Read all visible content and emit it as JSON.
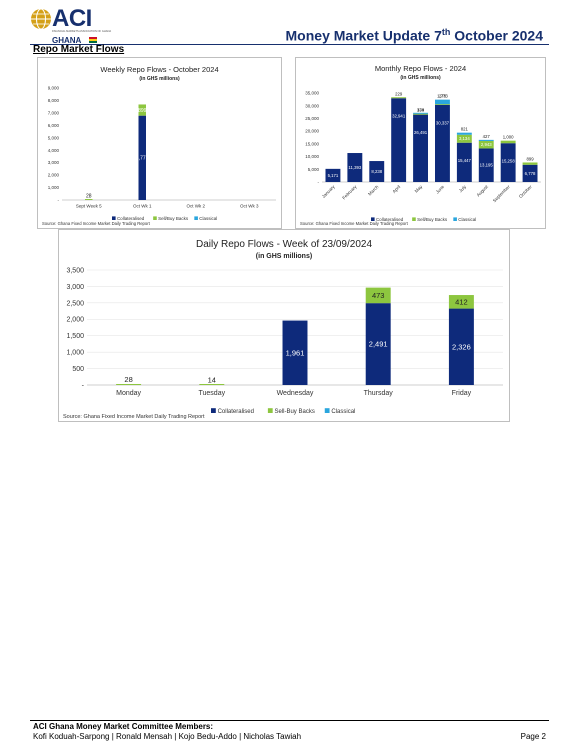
{
  "header": {
    "logo_text": "ACI",
    "logo_subtext": "FINANCIAL MARKETS ASSOCIATION OF GHANA",
    "logo_country": "GHANA",
    "title_main": "Money Market Update 7",
    "title_sup": "th",
    "title_end": " October 2024",
    "section": "Repo Market Flows"
  },
  "colors": {
    "collateralised": "#0e2a7b",
    "sell_buy_backs": "#8dc63f",
    "classical": "#2aa6de",
    "brand": "#17306e"
  },
  "chart_data": [
    {
      "type": "bar",
      "stacked": true,
      "title": "Weekly Repo Flows - October 2024",
      "subtitle": "(in GHS millions)",
      "categories": [
        "Sept Week 5",
        "Oct Wk 1",
        "Oct Wk 2",
        "Oct Wk 3"
      ],
      "series": [
        {
          "name": "Collateralised",
          "values": [
            0,
            6778,
            0,
            0
          ]
        },
        {
          "name": "Sell/Buy Backs",
          "values": [
            28,
            899,
            0,
            0
          ]
        },
        {
          "name": "Classical",
          "values": [
            0,
            0,
            0,
            0
          ]
        }
      ],
      "data_labels": [
        {
          "category": "Sept Week 5",
          "text": "28"
        },
        {
          "category": "Oct Wk 1",
          "text": "899"
        },
        {
          "category": "Oct Wk 1",
          "text": "6,778"
        }
      ],
      "ylim": [
        0,
        9000
      ],
      "yticks": [
        "-",
        "1,000",
        "2,000",
        "3,000",
        "4,000",
        "5,000",
        "6,000",
        "7,000",
        "8,000",
        "9,000"
      ],
      "legend": [
        "Collateralised",
        "Sell/Buy Backs",
        "Classical"
      ],
      "legend_position": "bottom",
      "source": "Source: Ghana Fixed Income Market Daily Trading Report"
    },
    {
      "type": "bar",
      "stacked": true,
      "title": "Monthly Repo Flows - 2024",
      "subtitle": "(in GHS millions)",
      "categories": [
        "January",
        "February",
        "March",
        "April",
        "May",
        "June",
        "July",
        "August",
        "September",
        "October"
      ],
      "series": [
        {
          "name": "Collateralised",
          "values": [
            5171,
            11393,
            8238,
            32941,
            26491,
            30337,
            15447,
            13195,
            15258,
            6778
          ]
        },
        {
          "name": "Sell/Buy Backs",
          "values": [
            0,
            0,
            0,
            229,
            330,
            278,
            3134,
            2943,
            1000,
            899
          ]
        },
        {
          "name": "Classical",
          "values": [
            0,
            0,
            0,
            0,
            174,
            1773,
            821,
            427,
            0,
            0
          ]
        }
      ],
      "data_labels": [
        {
          "category": "January",
          "text": "5,171"
        },
        {
          "category": "February",
          "text": "11,393"
        },
        {
          "category": "March",
          "text": "8,238"
        },
        {
          "category": "April",
          "text": "32,941"
        },
        {
          "category": "April",
          "text": "229"
        },
        {
          "category": "May",
          "text": "26,491"
        },
        {
          "category": "May",
          "text": "174"
        },
        {
          "category": "May",
          "text": "330"
        },
        {
          "category": "June",
          "text": "30,337"
        },
        {
          "category": "June",
          "text": "1,773"
        },
        {
          "category": "June",
          "text": "278"
        },
        {
          "category": "July",
          "text": "15,447"
        },
        {
          "category": "July",
          "text": "3,134"
        },
        {
          "category": "July",
          "text": "821"
        },
        {
          "category": "August",
          "text": "13,195"
        },
        {
          "category": "August",
          "text": "2,943"
        },
        {
          "category": "August",
          "text": "427"
        },
        {
          "category": "September",
          "text": "15,258"
        },
        {
          "category": "September",
          "text": "1,000"
        },
        {
          "category": "October",
          "text": "6,778"
        },
        {
          "category": "October",
          "text": "899"
        }
      ],
      "ylim": [
        0,
        35000
      ],
      "yticks": [
        "-",
        "5,000",
        "10,000",
        "15,000",
        "20,000",
        "25,000",
        "30,000",
        "35,000"
      ],
      "legend": [
        "Collateralised",
        "Sell/Buy Backs",
        "Classical"
      ],
      "legend_position": "bottom",
      "source": "Source: Ghana Fixed Income Market Daily Trading Report"
    },
    {
      "type": "bar",
      "stacked": true,
      "title": "Daily Repo Flows - Week of 23/09/2024",
      "subtitle": "(in GHS millions)",
      "categories": [
        "Monday",
        "Tuesday",
        "Wednesday",
        "Thursday",
        "Friday"
      ],
      "series": [
        {
          "name": "Collateralised",
          "values": [
            0,
            0,
            1961,
            2491,
            2326
          ]
        },
        {
          "name": "Sell-Buy Backs",
          "values": [
            28,
            14,
            0,
            473,
            412
          ]
        },
        {
          "name": "Classical",
          "values": [
            0,
            0,
            0,
            0,
            0
          ]
        }
      ],
      "data_labels": [
        {
          "category": "Monday",
          "text": "28"
        },
        {
          "category": "Tuesday",
          "text": "14"
        },
        {
          "category": "Wednesday",
          "text": "1,961"
        },
        {
          "category": "Thursday",
          "text": "2,491"
        },
        {
          "category": "Thursday",
          "text": "473"
        },
        {
          "category": "Friday",
          "text": "2,326"
        },
        {
          "category": "Friday",
          "text": "412"
        }
      ],
      "ylim": [
        0,
        3500
      ],
      "yticks": [
        "-",
        "500",
        "1,000",
        "1,500",
        "2,000",
        "2,500",
        "3,000",
        "3,500"
      ],
      "legend": [
        "Collateralised",
        "Sell-Buy Backs",
        "Classical"
      ],
      "legend_position": "bottom",
      "source": "Source: Ghana Fixed Income Market Daily Trading Report"
    }
  ],
  "footer": {
    "title": "ACI Ghana Money Market Committee Members:",
    "members": "Kofi Koduah-Sarpong | Ronald Mensah | Kojo Bedu-Addo | Nicholas Tawiah",
    "page": "Page 2"
  }
}
